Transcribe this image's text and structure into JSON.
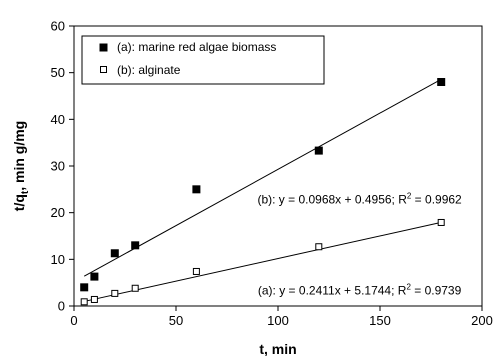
{
  "chart_data": {
    "type": "scatter",
    "xlabel": "t, min",
    "ylabel_main": "t/q",
    "ylabel_sub": "t",
    "ylabel_rest": ", min g/mg",
    "xlim": [
      0,
      200
    ],
    "ylim": [
      0,
      60
    ],
    "x_ticks": [
      0,
      50,
      100,
      150,
      200
    ],
    "y_ticks": [
      0,
      10,
      20,
      30,
      40,
      50,
      60
    ],
    "grid": false,
    "legend_position": "top-left",
    "series": [
      {
        "name": "(a): marine red algae biomass",
        "marker": "filled-square",
        "color": "#000000",
        "points": [
          [
            5,
            4.0
          ],
          [
            10,
            6.3
          ],
          [
            20,
            11.3
          ],
          [
            30,
            13.0
          ],
          [
            60,
            25.0
          ],
          [
            120,
            33.3
          ],
          [
            180,
            48.0
          ]
        ],
        "fit": {
          "slope": 0.2411,
          "intercept": 5.1744,
          "x_range": [
            5,
            180
          ]
        }
      },
      {
        "name": "(b): alginate",
        "marker": "open-square",
        "color": "#000000",
        "points": [
          [
            5,
            0.9
          ],
          [
            10,
            1.4
          ],
          [
            20,
            2.7
          ],
          [
            30,
            3.8
          ],
          [
            60,
            7.4
          ],
          [
            120,
            12.7
          ],
          [
            180,
            17.9
          ]
        ],
        "fit": {
          "slope": 0.0968,
          "intercept": 0.4956,
          "x_range": [
            5,
            180
          ]
        }
      }
    ],
    "annotations": [
      {
        "pre": "(b): y = 0.0968x + 0.4956; R",
        "sup": "2",
        "post": " = 0.9962",
        "anchor": [
          140,
          22
        ]
      },
      {
        "pre": "(a): y = 0.2411x + 5.1744; R",
        "sup": "2",
        "post": " = 0.9739",
        "anchor": [
          140,
          2.5
        ]
      }
    ]
  }
}
